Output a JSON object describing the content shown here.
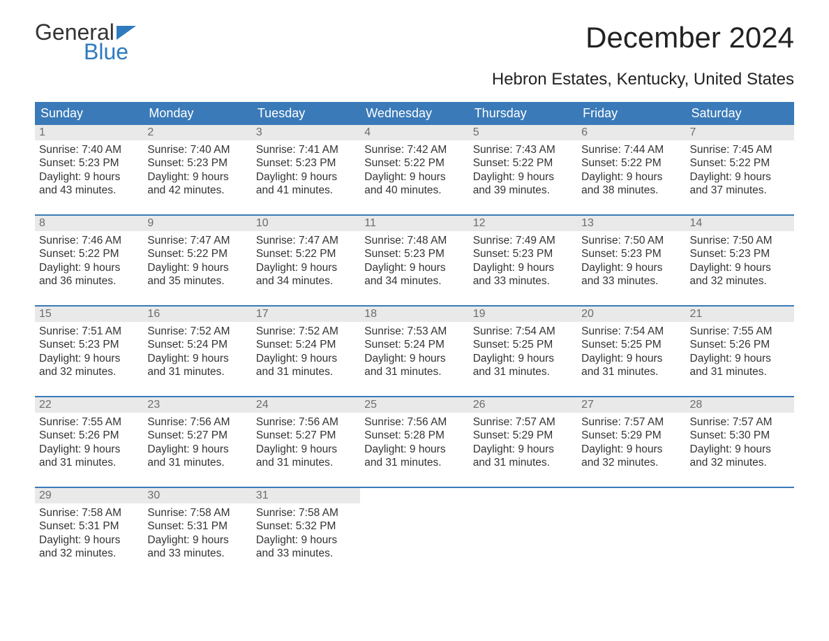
{
  "logo": {
    "word1": "General",
    "word2": "Blue"
  },
  "title": "December 2024",
  "subtitle": "Hebron Estates, Kentucky, United States",
  "colors": {
    "header_bg": "#3a7ab8",
    "header_text": "#ffffff",
    "daynum_bg": "#e9e9e9",
    "daynum_text": "#6c6c6c",
    "body_text": "#333333",
    "accent_blue": "#2e7bbf",
    "page_bg": "#ffffff"
  },
  "weekdays": [
    "Sunday",
    "Monday",
    "Tuesday",
    "Wednesday",
    "Thursday",
    "Friday",
    "Saturday"
  ],
  "labels": {
    "sunrise": "Sunrise:",
    "sunset": "Sunset:",
    "daylight": "Daylight:"
  },
  "weeks": [
    [
      {
        "n": "1",
        "sr": "7:40 AM",
        "ss": "5:23 PM",
        "dl": "9 hours and 43 minutes."
      },
      {
        "n": "2",
        "sr": "7:40 AM",
        "ss": "5:23 PM",
        "dl": "9 hours and 42 minutes."
      },
      {
        "n": "3",
        "sr": "7:41 AM",
        "ss": "5:23 PM",
        "dl": "9 hours and 41 minutes."
      },
      {
        "n": "4",
        "sr": "7:42 AM",
        "ss": "5:22 PM",
        "dl": "9 hours and 40 minutes."
      },
      {
        "n": "5",
        "sr": "7:43 AM",
        "ss": "5:22 PM",
        "dl": "9 hours and 39 minutes."
      },
      {
        "n": "6",
        "sr": "7:44 AM",
        "ss": "5:22 PM",
        "dl": "9 hours and 38 minutes."
      },
      {
        "n": "7",
        "sr": "7:45 AM",
        "ss": "5:22 PM",
        "dl": "9 hours and 37 minutes."
      }
    ],
    [
      {
        "n": "8",
        "sr": "7:46 AM",
        "ss": "5:22 PM",
        "dl": "9 hours and 36 minutes."
      },
      {
        "n": "9",
        "sr": "7:47 AM",
        "ss": "5:22 PM",
        "dl": "9 hours and 35 minutes."
      },
      {
        "n": "10",
        "sr": "7:47 AM",
        "ss": "5:22 PM",
        "dl": "9 hours and 34 minutes."
      },
      {
        "n": "11",
        "sr": "7:48 AM",
        "ss": "5:23 PM",
        "dl": "9 hours and 34 minutes."
      },
      {
        "n": "12",
        "sr": "7:49 AM",
        "ss": "5:23 PM",
        "dl": "9 hours and 33 minutes."
      },
      {
        "n": "13",
        "sr": "7:50 AM",
        "ss": "5:23 PM",
        "dl": "9 hours and 33 minutes."
      },
      {
        "n": "14",
        "sr": "7:50 AM",
        "ss": "5:23 PM",
        "dl": "9 hours and 32 minutes."
      }
    ],
    [
      {
        "n": "15",
        "sr": "7:51 AM",
        "ss": "5:23 PM",
        "dl": "9 hours and 32 minutes."
      },
      {
        "n": "16",
        "sr": "7:52 AM",
        "ss": "5:24 PM",
        "dl": "9 hours and 31 minutes."
      },
      {
        "n": "17",
        "sr": "7:52 AM",
        "ss": "5:24 PM",
        "dl": "9 hours and 31 minutes."
      },
      {
        "n": "18",
        "sr": "7:53 AM",
        "ss": "5:24 PM",
        "dl": "9 hours and 31 minutes."
      },
      {
        "n": "19",
        "sr": "7:54 AM",
        "ss": "5:25 PM",
        "dl": "9 hours and 31 minutes."
      },
      {
        "n": "20",
        "sr": "7:54 AM",
        "ss": "5:25 PM",
        "dl": "9 hours and 31 minutes."
      },
      {
        "n": "21",
        "sr": "7:55 AM",
        "ss": "5:26 PM",
        "dl": "9 hours and 31 minutes."
      }
    ],
    [
      {
        "n": "22",
        "sr": "7:55 AM",
        "ss": "5:26 PM",
        "dl": "9 hours and 31 minutes."
      },
      {
        "n": "23",
        "sr": "7:56 AM",
        "ss": "5:27 PM",
        "dl": "9 hours and 31 minutes."
      },
      {
        "n": "24",
        "sr": "7:56 AM",
        "ss": "5:27 PM",
        "dl": "9 hours and 31 minutes."
      },
      {
        "n": "25",
        "sr": "7:56 AM",
        "ss": "5:28 PM",
        "dl": "9 hours and 31 minutes."
      },
      {
        "n": "26",
        "sr": "7:57 AM",
        "ss": "5:29 PM",
        "dl": "9 hours and 31 minutes."
      },
      {
        "n": "27",
        "sr": "7:57 AM",
        "ss": "5:29 PM",
        "dl": "9 hours and 32 minutes."
      },
      {
        "n": "28",
        "sr": "7:57 AM",
        "ss": "5:30 PM",
        "dl": "9 hours and 32 minutes."
      }
    ],
    [
      {
        "n": "29",
        "sr": "7:58 AM",
        "ss": "5:31 PM",
        "dl": "9 hours and 32 minutes."
      },
      {
        "n": "30",
        "sr": "7:58 AM",
        "ss": "5:31 PM",
        "dl": "9 hours and 33 minutes."
      },
      {
        "n": "31",
        "sr": "7:58 AM",
        "ss": "5:32 PM",
        "dl": "9 hours and 33 minutes."
      },
      null,
      null,
      null,
      null
    ]
  ]
}
